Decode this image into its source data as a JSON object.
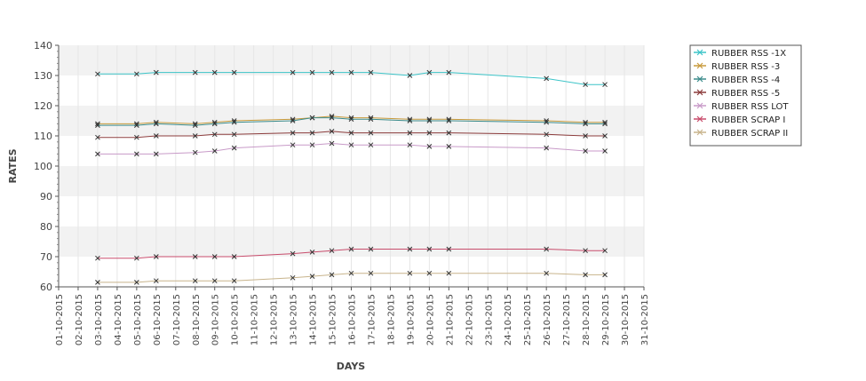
{
  "chart_data": {
    "type": "line",
    "title": "",
    "xlabel": "DAYS",
    "ylabel": "RATES",
    "ylim": [
      60,
      140
    ],
    "yticks": [
      60,
      70,
      80,
      90,
      100,
      110,
      120,
      130,
      140
    ],
    "x_ticks": [
      "01-10-2015",
      "02-10-2015",
      "03-10-2015",
      "04-10-2015",
      "05-10-2015",
      "06-10-2015",
      "07-10-2015",
      "08-10-2015",
      "09-10-2015",
      "10-10-2015",
      "11-10-2015",
      "12-10-2015",
      "13-10-2015",
      "14-10-2015",
      "15-10-2015",
      "16-10-2015",
      "17-10-2015",
      "18-10-2015",
      "19-10-2015",
      "20-10-2015",
      "21-10-2015",
      "22-10-2015",
      "23-10-2015",
      "24-10-2015",
      "25-10-2015",
      "26-10-2015",
      "27-10-2015",
      "28-10-2015",
      "29-10-2015",
      "30-10-2015",
      "31-10-2015"
    ],
    "x": [
      "03-10-2015",
      "05-10-2015",
      "06-10-2015",
      "08-10-2015",
      "09-10-2015",
      "10-10-2015",
      "13-10-2015",
      "14-10-2015",
      "15-10-2015",
      "16-10-2015",
      "17-10-2015",
      "19-10-2015",
      "20-10-2015",
      "21-10-2015",
      "26-10-2015",
      "28-10-2015",
      "29-10-2015"
    ],
    "grid": "horizontal bands",
    "legend_position": "right",
    "series": [
      {
        "name": "RUBBER RSS -1X",
        "color": "#3cc4c8",
        "values": [
          130.5,
          130.5,
          131,
          131,
          131,
          131,
          131,
          131,
          131,
          131,
          131,
          130,
          131,
          131,
          129,
          127,
          127
        ]
      },
      {
        "name": "RUBBER RSS -3",
        "color": "#c89a3c",
        "values": [
          114,
          114,
          114.5,
          114,
          114.5,
          115,
          115.5,
          116,
          116.5,
          116,
          116,
          115.5,
          115.5,
          115.5,
          115,
          114.5,
          114.5
        ]
      },
      {
        "name": "RUBBER RSS -4",
        "color": "#3c8c8c",
        "values": [
          113.5,
          113.5,
          114,
          113.5,
          114,
          114.5,
          115,
          116,
          116,
          115.5,
          115.5,
          115,
          115,
          115,
          114.5,
          114,
          114
        ]
      },
      {
        "name": "RUBBER RSS -5",
        "color": "#8c3c3c",
        "values": [
          109.5,
          109.5,
          110,
          110,
          110.5,
          110.5,
          111,
          111,
          111.5,
          111,
          111,
          111,
          111,
          111,
          110.5,
          110,
          110
        ]
      },
      {
        "name": "RUBBER RSS LOT",
        "color": "#c89ac8",
        "values": [
          104,
          104,
          104,
          104.5,
          105,
          106,
          107,
          107,
          107.5,
          107,
          107,
          107,
          106.5,
          106.5,
          106,
          105,
          105
        ]
      },
      {
        "name": "RUBBER SCRAP I",
        "color": "#c84c6c",
        "values": [
          69.5,
          69.5,
          70,
          70,
          70,
          70,
          71,
          71.5,
          72,
          72.5,
          72.5,
          72.5,
          72.5,
          72.5,
          72.5,
          72,
          72
        ]
      },
      {
        "name": "RUBBER SCRAP II",
        "color": "#c8b48c",
        "values": [
          61.5,
          61.5,
          62,
          62,
          62,
          62,
          63,
          63.5,
          64,
          64.5,
          64.5,
          64.5,
          64.5,
          64.5,
          64.5,
          64,
          64
        ]
      }
    ]
  }
}
